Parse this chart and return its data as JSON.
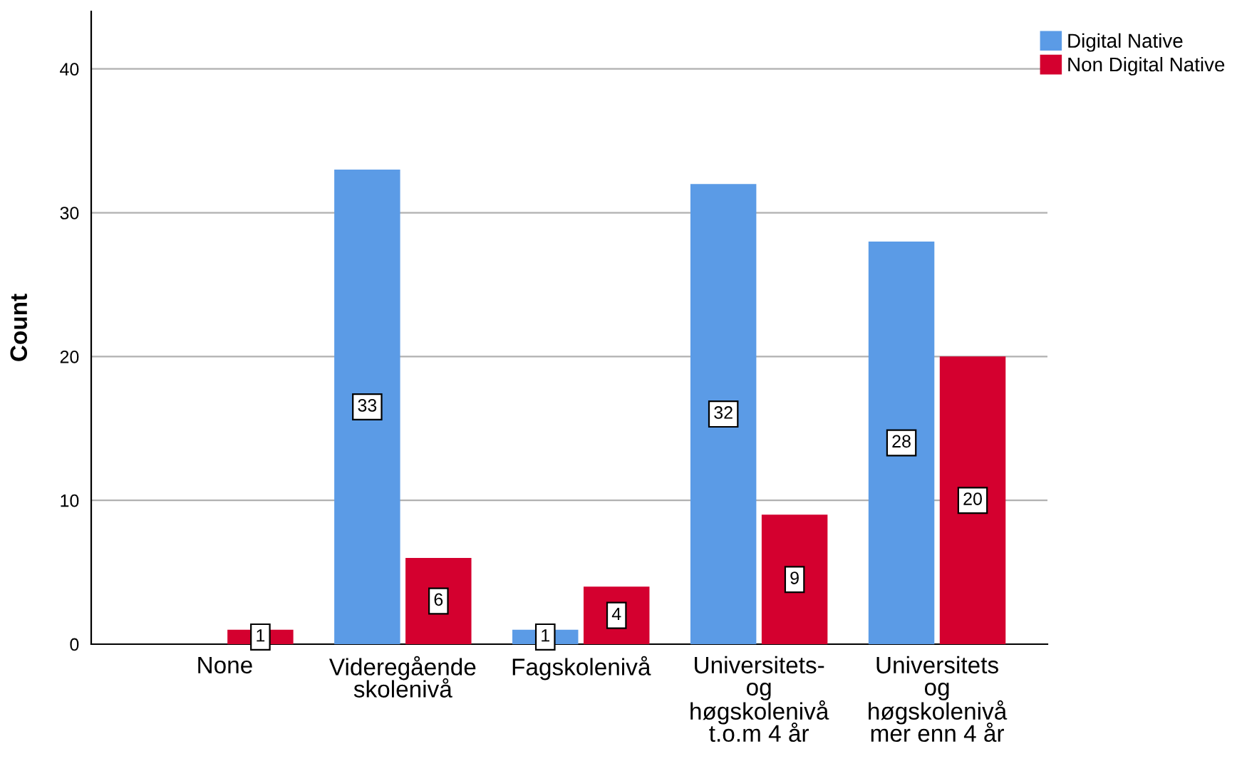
{
  "chart_data": {
    "type": "bar",
    "ylabel": "Count",
    "categories": [
      "None",
      "Videregående\nskolenivå",
      "Fagskolenivå",
      "Universitets-\nog\nhøgskolenivå\nt.o.m 4 år",
      "Universitets\nog\nhøgskolenivå\nmer enn 4 år"
    ],
    "series": [
      {
        "name": "Digital Native",
        "color": "#5b9be6",
        "values": [
          null,
          33,
          1,
          32,
          28
        ]
      },
      {
        "name": "Non Digital Native",
        "color": "#d4002f",
        "values": [
          1,
          6,
          4,
          9,
          20
        ]
      }
    ],
    "ylim": [
      0,
      44
    ],
    "yticks": [
      0,
      10,
      20,
      30,
      40
    ],
    "grid": "y",
    "legend": "top right",
    "data_labels": true
  }
}
